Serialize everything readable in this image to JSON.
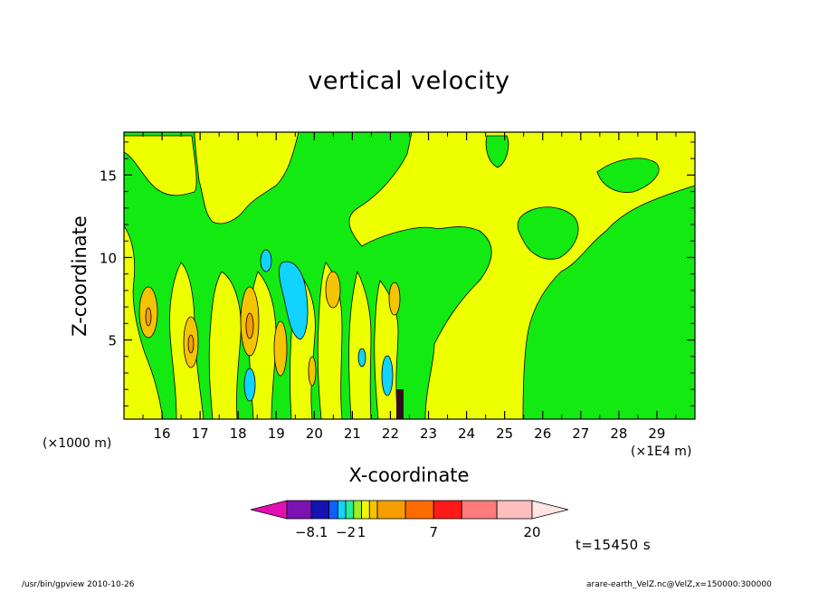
{
  "chart_data": {
    "type": "heatmap",
    "title": "vertical velocity",
    "xlabel": "X-coordinate",
    "ylabel": "Z-coordinate",
    "x_unit_left": "(×1000 m)",
    "x_unit_right": "(×1E4 m)",
    "x_ticks": [
      "16",
      "17",
      "18",
      "19",
      "20",
      "21",
      "22",
      "23",
      "24",
      "25",
      "26",
      "27",
      "28",
      "29"
    ],
    "x_tick_values": [
      16,
      17,
      18,
      19,
      20,
      21,
      22,
      23,
      24,
      25,
      26,
      27,
      28,
      29
    ],
    "xlim": [
      15,
      30
    ],
    "y_ticks": [
      "5",
      "10",
      "15"
    ],
    "y_tick_values": [
      5,
      10,
      15
    ],
    "ylim": [
      0.2,
      17.6
    ],
    "time_label": "t=15450 s",
    "colorbar": {
      "colors": [
        "#e30fb4",
        "#7a13b1",
        "#1313b4",
        "#1060ff",
        "#11d3ff",
        "#23ef9a",
        "#9cf01e",
        "#f0f70b",
        "#f6c300",
        "#f69e00",
        "#ff6b00",
        "#ff1a1a",
        "#ff7b7b",
        "#ffbebe",
        "#ffe4e4"
      ],
      "extend_both": true,
      "labels": [
        {
          "text": "−8.1",
          "index": 1
        },
        {
          "text": "−2",
          "index": 4
        },
        {
          "text": "1",
          "index": 6
        },
        {
          "text": "7",
          "index": 10
        },
        {
          "text": "20",
          "index": 13
        }
      ]
    },
    "fields": {
      "green": "#12ea12",
      "yellow": "#eeff00"
    }
  },
  "footer": {
    "left": "/usr/bin/gpview   2010-10-26",
    "right": "arare-earth_VelZ.nc@VelZ,x=150000:300000"
  }
}
